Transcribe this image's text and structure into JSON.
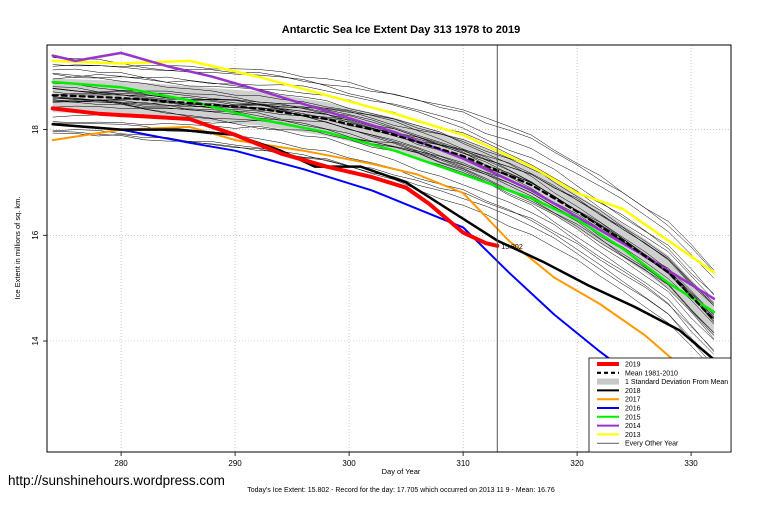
{
  "chart_data": {
    "type": "line",
    "title": "Antarctic Sea Ice Extent Day 313 1978 to 2019",
    "xlabel": "Day of Year",
    "ylabel": "Ice Extent in millions of sq. km.",
    "xlim": [
      273.5,
      333.5
    ],
    "ylim": [
      11.9,
      19.6
    ],
    "x_ticks": [
      280,
      290,
      300,
      310,
      320,
      330
    ],
    "y_ticks": [
      14,
      16,
      18
    ],
    "grid": true,
    "legend_position": "bottom-right",
    "marker_line": {
      "x": 313
    },
    "current_value_label": "15.802",
    "footer": "Today's Ice Extent: 15.802  - Record for the day: 17.705 which occurred on 2013 11 9  - Mean: 16.76",
    "watermark": "http://sunshinehours.wordpress.com",
    "legend": [
      {
        "label": "2019",
        "color": "#ff0000",
        "style": "thick"
      },
      {
        "label": "Mean 1981-2010",
        "color": "#000000",
        "style": "dashed"
      },
      {
        "label": "1 Standard Deviation From Mean",
        "color": "#c8c8c8",
        "style": "band"
      },
      {
        "label": "2018",
        "color": "#000000",
        "style": "solid"
      },
      {
        "label": "2017",
        "color": "#ff9900",
        "style": "solid"
      },
      {
        "label": "2016",
        "color": "#0000ff",
        "style": "solid"
      },
      {
        "label": "2015",
        "color": "#00ee00",
        "style": "solid"
      },
      {
        "label": "2014",
        "color": "#9933cc",
        "style": "solid"
      },
      {
        "label": "2013",
        "color": "#ffff00",
        "style": "solid"
      },
      {
        "label": "Every Other Year",
        "color": "#000000",
        "style": "thin"
      }
    ],
    "series": [
      {
        "name": "2019",
        "color": "#ff0000",
        "width": 4,
        "x": [
          274,
          278,
          282,
          286,
          290,
          294,
          298,
          302,
          305,
          307,
          310,
          312,
          313
        ],
        "y": [
          18.4,
          18.3,
          18.25,
          18.2,
          17.9,
          17.55,
          17.3,
          17.1,
          16.9,
          16.6,
          16.05,
          15.85,
          15.802
        ]
      },
      {
        "name": "Mean 1981-2010",
        "color": "#000000",
        "width": 2.2,
        "dash": "5,4",
        "x": [
          274,
          280,
          286,
          292,
          298,
          304,
          310,
          316,
          320,
          324,
          328,
          332
        ],
        "y": [
          18.65,
          18.6,
          18.5,
          18.4,
          18.2,
          17.9,
          17.5,
          16.95,
          16.45,
          15.9,
          15.3,
          14.4
        ]
      },
      {
        "name": "2018",
        "color": "#000000",
        "width": 2.5,
        "x": [
          274,
          280,
          285,
          290,
          294,
          297,
          301,
          305,
          309,
          313,
          317,
          321,
          325,
          329,
          332
        ],
        "y": [
          18.1,
          18.0,
          18.0,
          17.9,
          17.6,
          17.3,
          17.3,
          17.0,
          16.45,
          15.9,
          15.5,
          15.05,
          14.65,
          14.2,
          13.65
        ]
      },
      {
        "name": "2017",
        "color": "#ff9900",
        "width": 2,
        "x": [
          274,
          280,
          286,
          290,
          296,
          302,
          306,
          310,
          314,
          318,
          322,
          326,
          330,
          332
        ],
        "y": [
          17.8,
          18.0,
          18.05,
          17.8,
          17.6,
          17.35,
          17.15,
          16.8,
          15.9,
          15.2,
          14.7,
          14.1,
          13.35,
          13.1
        ]
      },
      {
        "name": "2016",
        "color": "#0000ff",
        "width": 2,
        "x": [
          274,
          280,
          286,
          290,
          296,
          302,
          306,
          310,
          314,
          318,
          322,
          326,
          330,
          332
        ],
        "y": [
          18.1,
          18.0,
          17.75,
          17.6,
          17.25,
          16.85,
          16.5,
          16.15,
          15.3,
          14.5,
          13.8,
          13.15,
          12.6,
          12.25
        ]
      },
      {
        "name": "2015",
        "color": "#00ee00",
        "width": 2.5,
        "x": [
          274,
          280,
          286,
          292,
          298,
          304,
          310,
          316,
          320,
          324,
          328,
          332
        ],
        "y": [
          18.9,
          18.8,
          18.55,
          18.2,
          17.95,
          17.6,
          17.15,
          16.7,
          16.3,
          15.75,
          15.1,
          14.55
        ]
      },
      {
        "name": "2014",
        "color": "#9933cc",
        "width": 2.5,
        "x": [
          274,
          276,
          280,
          284,
          288,
          292,
          298,
          304,
          310,
          316,
          320,
          326,
          332
        ],
        "y": [
          19.4,
          19.3,
          19.45,
          19.2,
          19.0,
          18.75,
          18.35,
          17.95,
          17.45,
          16.85,
          16.35,
          15.6,
          14.8
        ]
      },
      {
        "name": "2013",
        "color": "#ffff00",
        "width": 2.5,
        "x": [
          274,
          280,
          286,
          292,
          298,
          304,
          310,
          316,
          320,
          324,
          328,
          332
        ],
        "y": [
          19.3,
          19.25,
          19.3,
          19.0,
          18.65,
          18.3,
          17.9,
          17.3,
          16.8,
          16.5,
          15.9,
          15.3
        ]
      }
    ]
  }
}
